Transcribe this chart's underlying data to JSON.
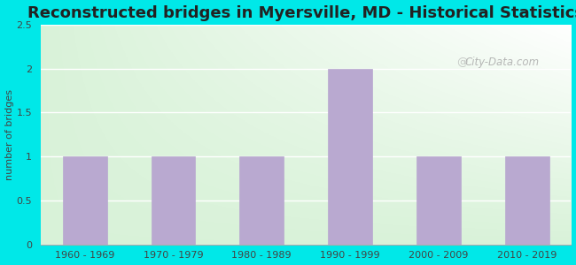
{
  "title": "Reconstructed bridges in Myersville, MD - Historical Statistics",
  "categories": [
    "1960 - 1969",
    "1970 - 1979",
    "1980 - 1989",
    "1990 - 1999",
    "2000 - 2009",
    "2010 - 2019"
  ],
  "values": [
    1,
    1,
    1,
    2,
    1,
    1
  ],
  "bar_color": "#b9a9d0",
  "ylabel": "number of bridges",
  "ylim": [
    0,
    2.5
  ],
  "yticks": [
    0,
    0.5,
    1,
    1.5,
    2,
    2.5
  ],
  "background_outer": "#00e8e8",
  "title_fontsize": 13,
  "watermark": "City-Data.com",
  "tick_fontsize": 8,
  "ylabel_fontsize": 8
}
